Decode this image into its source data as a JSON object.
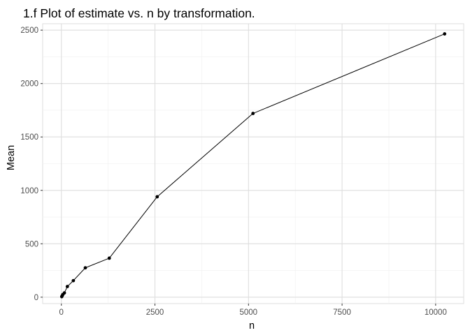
{
  "chart_data": {
    "type": "line",
    "title": "1.f Plot of estimate vs. n by transformation.",
    "xlabel": "n",
    "ylabel": "Mean",
    "xlim": [
      -500,
      10750
    ],
    "ylim": [
      -60,
      2560
    ],
    "xticks": [
      0,
      2500,
      5000,
      7500,
      10000
    ],
    "xtick_labels": [
      "0",
      "2500",
      "5000",
      "7500",
      "10000"
    ],
    "yticks": [
      0,
      500,
      1000,
      1500,
      2000,
      2500
    ],
    "ytick_labels": [
      "0",
      "500",
      "1000",
      "1500",
      "2000",
      "2500"
    ],
    "grid": true,
    "legend": "none",
    "colors": {
      "series": "#000000",
      "grid_major": "#dedede",
      "grid_minor": "#efefef",
      "panel_border": "#dedede",
      "tick_label": "#4d4d4d"
    },
    "series": [
      {
        "x": [
          10,
          20,
          40,
          80,
          160,
          320,
          640,
          1280,
          2560,
          5120,
          10240
        ],
        "y": [
          5,
          12,
          25,
          40,
          100,
          155,
          275,
          365,
          940,
          1720,
          2465
        ]
      }
    ]
  }
}
